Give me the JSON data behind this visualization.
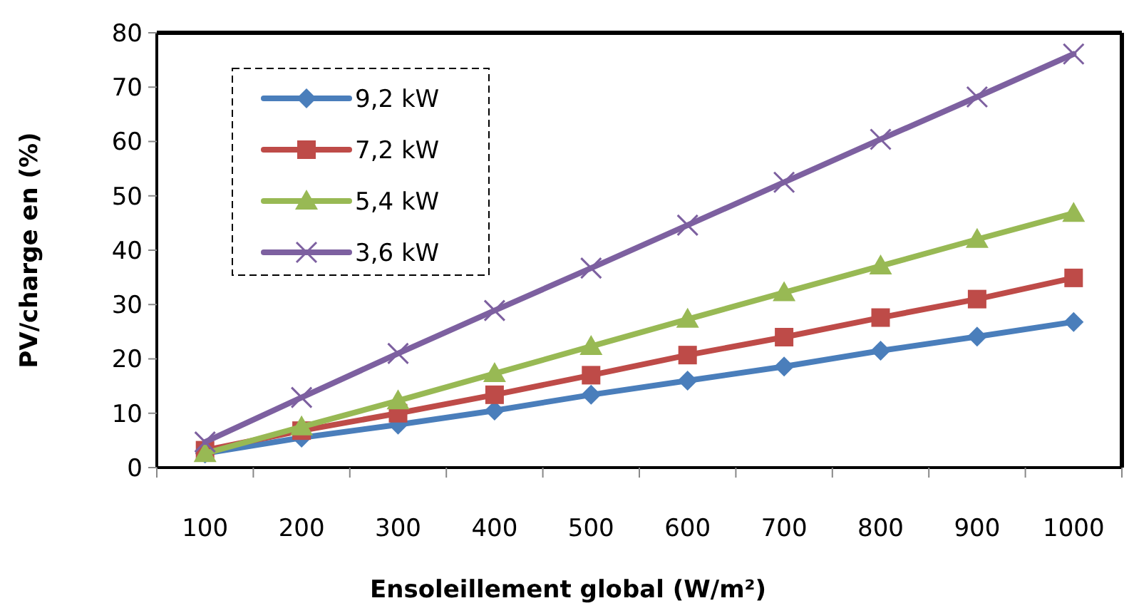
{
  "chart_data": {
    "type": "line",
    "xlabel": "Ensoleillement global (W/m²)",
    "ylabel": "PV/charge en (%)",
    "categories": [
      "100",
      "200",
      "300",
      "400",
      "500",
      "600",
      "700",
      "800",
      "900",
      "1000"
    ],
    "ylim": [
      0,
      80
    ],
    "yticks": [
      0,
      10,
      20,
      30,
      40,
      50,
      60,
      70,
      80
    ],
    "grid": false,
    "legend": "top left",
    "line_style": "solid",
    "series": [
      {
        "name": "9,2 kW",
        "color": "#4a7ebb",
        "marker": "diamond",
        "values": [
          2.6,
          5.5,
          7.9,
          10.5,
          13.4,
          16,
          18.6,
          21.5,
          24.1,
          26.8
        ]
      },
      {
        "name": "7,2 kW",
        "color": "#be4b48",
        "marker": "square",
        "values": [
          3.2,
          6.8,
          10,
          13.4,
          17,
          20.7,
          24,
          27.6,
          31,
          34.9
        ]
      },
      {
        "name": "5,4 kW",
        "color": "#98b954",
        "marker": "triangle",
        "values": [
          2.6,
          7.5,
          12.3,
          17.3,
          22.3,
          27.3,
          32.2,
          37.1,
          42,
          46.8
        ]
      },
      {
        "name": "3,6 kW",
        "color": "#7d60a0",
        "marker": "cross",
        "values": [
          4.7,
          12.9,
          21,
          28.9,
          36.7,
          44.6,
          52.5,
          60.4,
          68.2,
          76.1
        ]
      }
    ]
  }
}
